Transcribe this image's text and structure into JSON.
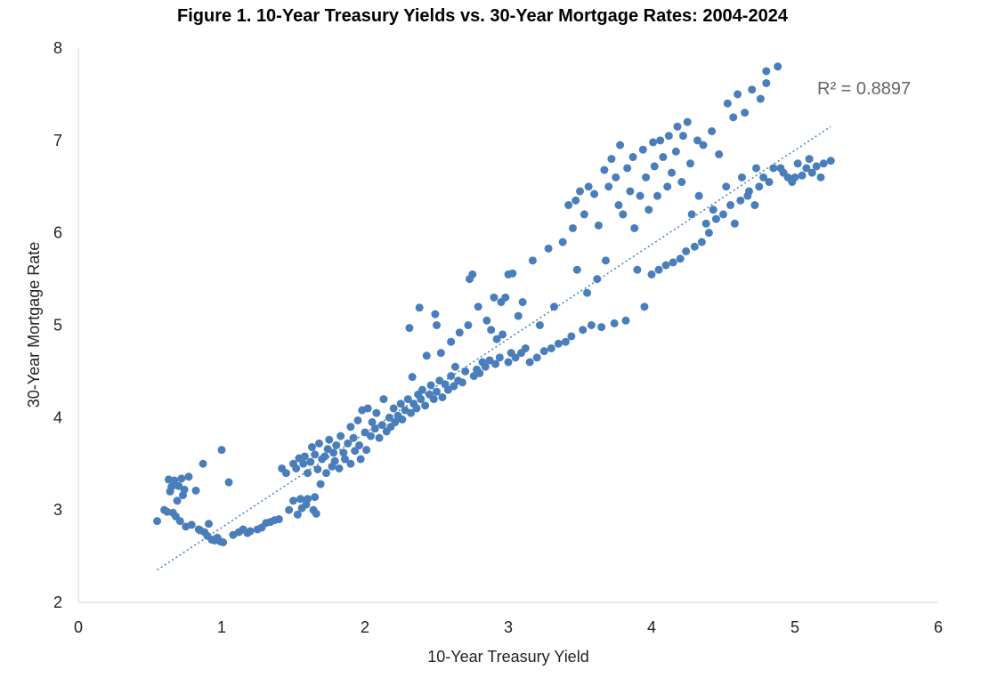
{
  "chart_data": {
    "type": "scatter",
    "title": "Figure 1. 10-Year Treasury Yields vs. 30-Year Mortgage Rates: 2004-2024",
    "xlabel": "10-Year Treasury Yield",
    "ylabel": "30-Year Mortgage Rate",
    "xlim": [
      0,
      6
    ],
    "ylim": [
      2,
      8
    ],
    "xticks": [
      "0",
      "1",
      "2",
      "3",
      "4",
      "5",
      "6"
    ],
    "yticks": [
      "2",
      "3",
      "4",
      "5",
      "6",
      "7",
      "8"
    ],
    "grid": false,
    "legend": "none",
    "point_color": "#4a7ebb",
    "trendline": {
      "type": "linear",
      "style": "dotted",
      "color": "#4a7ebb",
      "x_range": [
        0.55,
        5.25
      ],
      "y_range": [
        2.35,
        7.15
      ],
      "r2_label": "R² = 0.8897"
    },
    "points": [
      [
        0.55,
        2.88
      ],
      [
        0.6,
        3.0
      ],
      [
        0.62,
        2.98
      ],
      [
        0.63,
        3.33
      ],
      [
        0.64,
        3.2
      ],
      [
        0.65,
        3.25
      ],
      [
        0.66,
        2.97
      ],
      [
        0.67,
        3.32
      ],
      [
        0.68,
        2.93
      ],
      [
        0.69,
        3.1
      ],
      [
        0.7,
        3.26
      ],
      [
        0.71,
        2.88
      ],
      [
        0.72,
        3.34
      ],
      [
        0.73,
        3.16
      ],
      [
        0.74,
        3.22
      ],
      [
        0.75,
        2.82
      ],
      [
        0.77,
        3.36
      ],
      [
        0.79,
        2.84
      ],
      [
        0.82,
        3.21
      ],
      [
        0.84,
        2.79
      ],
      [
        0.85,
        2.78
      ],
      [
        0.87,
        3.5
      ],
      [
        0.88,
        2.76
      ],
      [
        0.9,
        2.72
      ],
      [
        0.91,
        2.85
      ],
      [
        0.93,
        2.68
      ],
      [
        0.95,
        2.67
      ],
      [
        0.97,
        2.7
      ],
      [
        0.99,
        2.66
      ],
      [
        1.0,
        3.65
      ],
      [
        1.01,
        2.65
      ],
      [
        1.05,
        3.3
      ],
      [
        1.08,
        2.73
      ],
      [
        1.12,
        2.76
      ],
      [
        1.15,
        2.79
      ],
      [
        1.18,
        2.75
      ],
      [
        1.2,
        2.77
      ],
      [
        1.25,
        2.79
      ],
      [
        1.28,
        2.81
      ],
      [
        1.31,
        2.86
      ],
      [
        1.34,
        2.87
      ],
      [
        1.37,
        2.89
      ],
      [
        1.4,
        2.9
      ],
      [
        1.42,
        3.45
      ],
      [
        1.45,
        3.4
      ],
      [
        1.47,
        3.0
      ],
      [
        1.5,
        3.1
      ],
      [
        1.5,
        3.5
      ],
      [
        1.52,
        3.45
      ],
      [
        1.53,
        2.95
      ],
      [
        1.54,
        3.56
      ],
      [
        1.55,
        3.12
      ],
      [
        1.56,
        3.02
      ],
      [
        1.57,
        3.5
      ],
      [
        1.58,
        3.58
      ],
      [
        1.59,
        3.06
      ],
      [
        1.6,
        3.4
      ],
      [
        1.6,
        3.12
      ],
      [
        1.62,
        3.52
      ],
      [
        1.63,
        3.68
      ],
      [
        1.64,
        3.0
      ],
      [
        1.65,
        3.14
      ],
      [
        1.65,
        3.6
      ],
      [
        1.66,
        2.96
      ],
      [
        1.67,
        3.44
      ],
      [
        1.68,
        3.72
      ],
      [
        1.69,
        3.28
      ],
      [
        1.7,
        3.55
      ],
      [
        1.72,
        3.58
      ],
      [
        1.73,
        3.4
      ],
      [
        1.74,
        3.66
      ],
      [
        1.75,
        3.76
      ],
      [
        1.77,
        3.47
      ],
      [
        1.78,
        3.62
      ],
      [
        1.79,
        3.53
      ],
      [
        1.8,
        3.7
      ],
      [
        1.82,
        3.45
      ],
      [
        1.83,
        3.8
      ],
      [
        1.85,
        3.62
      ],
      [
        1.86,
        3.55
      ],
      [
        1.88,
        3.72
      ],
      [
        1.9,
        3.5
      ],
      [
        1.9,
        3.9
      ],
      [
        1.92,
        3.78
      ],
      [
        1.93,
        3.64
      ],
      [
        1.95,
        3.97
      ],
      [
        1.96,
        3.7
      ],
      [
        1.97,
        3.55
      ],
      [
        1.98,
        4.08
      ],
      [
        2.0,
        3.84
      ],
      [
        2.01,
        3.65
      ],
      [
        2.02,
        4.1
      ],
      [
        2.04,
        3.8
      ],
      [
        2.05,
        3.95
      ],
      [
        2.07,
        3.88
      ],
      [
        2.08,
        4.05
      ],
      [
        2.1,
        3.78
      ],
      [
        2.12,
        3.92
      ],
      [
        2.13,
        4.2
      ],
      [
        2.15,
        3.85
      ],
      [
        2.17,
        4.0
      ],
      [
        2.18,
        3.9
      ],
      [
        2.2,
        4.1
      ],
      [
        2.21,
        3.95
      ],
      [
        2.23,
        4.02
      ],
      [
        2.25,
        4.15
      ],
      [
        2.26,
        3.98
      ],
      [
        2.28,
        4.08
      ],
      [
        2.3,
        4.2
      ],
      [
        2.31,
        4.97
      ],
      [
        2.32,
        4.05
      ],
      [
        2.33,
        4.44
      ],
      [
        2.34,
        4.15
      ],
      [
        2.36,
        4.1
      ],
      [
        2.37,
        4.25
      ],
      [
        2.38,
        5.19
      ],
      [
        2.39,
        4.2
      ],
      [
        2.4,
        4.3
      ],
      [
        2.42,
        4.13
      ],
      [
        2.43,
        4.67
      ],
      [
        2.45,
        4.25
      ],
      [
        2.46,
        4.35
      ],
      [
        2.48,
        4.2
      ],
      [
        2.49,
        5.12
      ],
      [
        2.5,
        4.28
      ],
      [
        2.5,
        5.0
      ],
      [
        2.52,
        4.4
      ],
      [
        2.53,
        4.7
      ],
      [
        2.54,
        4.22
      ],
      [
        2.56,
        4.36
      ],
      [
        2.58,
        4.3
      ],
      [
        2.6,
        4.45
      ],
      [
        2.6,
        4.82
      ],
      [
        2.62,
        4.34
      ],
      [
        2.63,
        4.55
      ],
      [
        2.65,
        4.4
      ],
      [
        2.66,
        4.92
      ],
      [
        2.68,
        4.38
      ],
      [
        2.7,
        4.5
      ],
      [
        2.72,
        5.0
      ],
      [
        2.73,
        5.5
      ],
      [
        2.75,
        5.55
      ],
      [
        2.76,
        4.45
      ],
      [
        2.78,
        4.52
      ],
      [
        2.79,
        5.2
      ],
      [
        2.8,
        4.48
      ],
      [
        2.82,
        4.6
      ],
      [
        2.84,
        4.55
      ],
      [
        2.85,
        5.05
      ],
      [
        2.87,
        4.62
      ],
      [
        2.88,
        4.95
      ],
      [
        2.9,
        5.3
      ],
      [
        2.91,
        4.58
      ],
      [
        2.92,
        4.85
      ],
      [
        2.94,
        4.65
      ],
      [
        2.95,
        5.25
      ],
      [
        2.96,
        4.9
      ],
      [
        2.98,
        5.3
      ],
      [
        3.0,
        4.6
      ],
      [
        3.0,
        5.55
      ],
      [
        3.02,
        4.7
      ],
      [
        3.03,
        5.56
      ],
      [
        3.05,
        4.65
      ],
      [
        3.07,
        5.1
      ],
      [
        3.09,
        4.7
      ],
      [
        3.1,
        5.25
      ],
      [
        3.12,
        4.75
      ],
      [
        3.15,
        4.6
      ],
      [
        3.17,
        5.7
      ],
      [
        3.2,
        4.65
      ],
      [
        3.22,
        5.0
      ],
      [
        3.25,
        4.72
      ],
      [
        3.28,
        5.83
      ],
      [
        3.3,
        4.75
      ],
      [
        3.32,
        5.2
      ],
      [
        3.35,
        4.8
      ],
      [
        3.38,
        5.9
      ],
      [
        3.4,
        4.82
      ],
      [
        3.42,
        6.3
      ],
      [
        3.44,
        4.88
      ],
      [
        3.45,
        6.05
      ],
      [
        3.47,
        6.35
      ],
      [
        3.48,
        5.6
      ],
      [
        3.5,
        6.45
      ],
      [
        3.52,
        4.95
      ],
      [
        3.53,
        6.2
      ],
      [
        3.55,
        5.35
      ],
      [
        3.56,
        6.5
      ],
      [
        3.58,
        5.0
      ],
      [
        3.6,
        6.42
      ],
      [
        3.62,
        5.5
      ],
      [
        3.63,
        6.08
      ],
      [
        3.65,
        4.98
      ],
      [
        3.67,
        6.68
      ],
      [
        3.68,
        5.7
      ],
      [
        3.7,
        6.5
      ],
      [
        3.72,
        6.8
      ],
      [
        3.74,
        5.02
      ],
      [
        3.75,
        6.6
      ],
      [
        3.77,
        6.3
      ],
      [
        3.78,
        6.95
      ],
      [
        3.8,
        6.2
      ],
      [
        3.82,
        5.05
      ],
      [
        3.83,
        6.7
      ],
      [
        3.85,
        6.45
      ],
      [
        3.87,
        6.82
      ],
      [
        3.88,
        6.05
      ],
      [
        3.9,
        5.6
      ],
      [
        3.92,
        6.4
      ],
      [
        3.94,
        6.9
      ],
      [
        3.95,
        5.2
      ],
      [
        3.96,
        6.6
      ],
      [
        3.98,
        6.25
      ],
      [
        4.0,
        5.55
      ],
      [
        4.01,
        6.98
      ],
      [
        4.02,
        6.72
      ],
      [
        4.04,
        6.4
      ],
      [
        4.05,
        5.6
      ],
      [
        4.06,
        7.0
      ],
      [
        4.08,
        6.82
      ],
      [
        4.1,
        5.65
      ],
      [
        4.11,
        6.5
      ],
      [
        4.12,
        7.05
      ],
      [
        4.14,
        6.65
      ],
      [
        4.15,
        5.68
      ],
      [
        4.17,
        6.88
      ],
      [
        4.18,
        7.15
      ],
      [
        4.2,
        5.72
      ],
      [
        4.21,
        6.55
      ],
      [
        4.22,
        7.05
      ],
      [
        4.24,
        5.8
      ],
      [
        4.25,
        7.2
      ],
      [
        4.27,
        6.75
      ],
      [
        4.28,
        6.2
      ],
      [
        4.3,
        5.85
      ],
      [
        4.32,
        7.0
      ],
      [
        4.33,
        6.4
      ],
      [
        4.35,
        5.9
      ],
      [
        4.36,
        6.95
      ],
      [
        4.38,
        6.1
      ],
      [
        4.4,
        6.0
      ],
      [
        4.42,
        7.1
      ],
      [
        4.43,
        6.25
      ],
      [
        4.45,
        6.15
      ],
      [
        4.47,
        6.85
      ],
      [
        4.5,
        6.2
      ],
      [
        4.52,
        6.5
      ],
      [
        4.53,
        7.4
      ],
      [
        4.55,
        6.3
      ],
      [
        4.57,
        7.25
      ],
      [
        4.58,
        6.1
      ],
      [
        4.6,
        7.5
      ],
      [
        4.62,
        6.35
      ],
      [
        4.63,
        6.6
      ],
      [
        4.65,
        7.3
      ],
      [
        4.67,
        6.4
      ],
      [
        4.68,
        6.45
      ],
      [
        4.7,
        7.55
      ],
      [
        4.72,
        6.3
      ],
      [
        4.73,
        6.7
      ],
      [
        4.75,
        6.5
      ],
      [
        4.76,
        7.45
      ],
      [
        4.78,
        6.6
      ],
      [
        4.8,
        7.75
      ],
      [
        4.8,
        7.62
      ],
      [
        4.82,
        6.55
      ],
      [
        4.85,
        6.7
      ],
      [
        4.88,
        7.8
      ],
      [
        4.9,
        6.7
      ],
      [
        4.92,
        6.65
      ],
      [
        4.95,
        6.6
      ],
      [
        4.98,
        6.55
      ],
      [
        5.0,
        6.6
      ],
      [
        5.02,
        6.75
      ],
      [
        5.05,
        6.62
      ],
      [
        5.08,
        6.7
      ],
      [
        5.1,
        6.8
      ],
      [
        5.12,
        6.65
      ],
      [
        5.15,
        6.72
      ],
      [
        5.18,
        6.6
      ],
      [
        5.2,
        6.75
      ],
      [
        5.25,
        6.78
      ]
    ]
  }
}
